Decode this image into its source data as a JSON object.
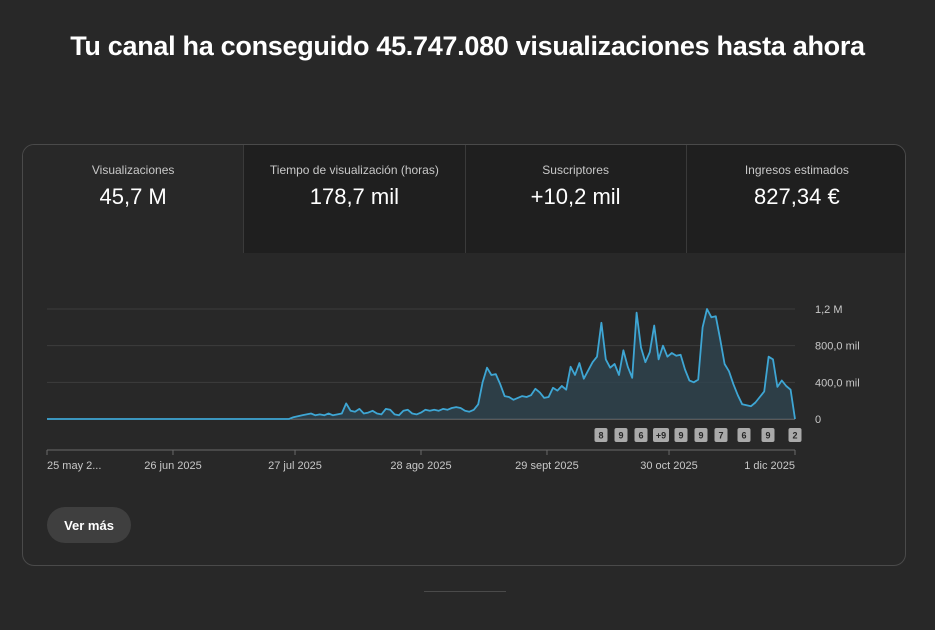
{
  "headline": "Tu canal ha conseguido 45.747.080 visualizaciones hasta ahora",
  "metrics": [
    {
      "label": "Visualizaciones",
      "value": "45,7 M"
    },
    {
      "label": "Tiempo de visualización (horas)",
      "value": "178,7 mil"
    },
    {
      "label": "Suscriptores",
      "value": "+10,2 mil"
    },
    {
      "label": "Ingresos estimados",
      "value": "827,34 €"
    }
  ],
  "more_label": "Ver más",
  "colors": {
    "line": "#3ea6d4",
    "fill": "#2f4652",
    "badge": "#aaaaaa"
  },
  "chart_data": {
    "type": "area",
    "title": "",
    "series": [
      {
        "name": "Visualizaciones",
        "values": [
          0,
          0,
          0,
          0,
          0,
          0,
          0,
          0,
          0,
          0,
          0,
          0,
          0,
          0,
          0,
          0,
          0,
          0,
          0,
          0,
          0,
          0,
          0,
          0,
          0,
          0,
          0,
          0,
          0,
          0,
          0,
          0,
          0,
          0,
          0,
          0,
          0,
          0,
          0,
          0,
          0,
          0,
          0,
          0,
          0,
          0,
          0,
          0,
          0,
          0,
          0,
          0,
          0,
          0,
          0,
          0,
          20000,
          30000,
          40000,
          50000,
          60000,
          40000,
          50000,
          40000,
          60000,
          40000,
          50000,
          60000,
          170000,
          90000,
          80000,
          110000,
          60000,
          70000,
          90000,
          60000,
          50000,
          110000,
          100000,
          50000,
          40000,
          90000,
          100000,
          60000,
          50000,
          70000,
          100000,
          90000,
          100000,
          90000,
          110000,
          100000,
          120000,
          130000,
          120000,
          90000,
          80000,
          100000,
          160000,
          400000,
          560000,
          480000,
          490000,
          380000,
          250000,
          240000,
          210000,
          230000,
          250000,
          240000,
          260000,
          330000,
          290000,
          230000,
          240000,
          340000,
          310000,
          360000,
          320000,
          570000,
          480000,
          610000,
          440000,
          530000,
          620000,
          680000,
          1050000,
          650000,
          560000,
          600000,
          480000,
          750000,
          570000,
          450000,
          1160000,
          780000,
          620000,
          730000,
          1020000,
          650000,
          800000,
          680000,
          720000,
          690000,
          700000,
          540000,
          420000,
          400000,
          430000,
          1000000,
          1200000,
          1110000,
          1120000,
          870000,
          600000,
          520000,
          380000,
          260000,
          160000,
          150000,
          140000,
          180000,
          240000,
          300000,
          680000,
          650000,
          350000,
          420000,
          360000,
          320000,
          0
        ]
      }
    ],
    "x_tick_labels": [
      "25 may 2...",
      "26 jun 2025",
      "27 jul 2025",
      "28 ago 2025",
      "29 sept 2025",
      "30 oct 2025",
      "1 dic 2025"
    ],
    "x_tick_dates": [
      "2025-05-25",
      "2025-06-26",
      "2025-07-27",
      "2025-08-28",
      "2025-09-29",
      "2025-10-30",
      "2025-12-01"
    ],
    "y_ticks": [
      {
        "value": 0,
        "label": "0"
      },
      {
        "value": 400000,
        "label": "400,0 mil"
      },
      {
        "value": 800000,
        "label": "800,0 mil"
      },
      {
        "value": 1200000,
        "label": "1,2 M"
      }
    ],
    "ylim": [
      0,
      1200000
    ],
    "grid": true,
    "annotations": [
      "8",
      "9",
      "6",
      "+9",
      "9",
      "9",
      "7",
      "6",
      "9",
      "2"
    ]
  }
}
